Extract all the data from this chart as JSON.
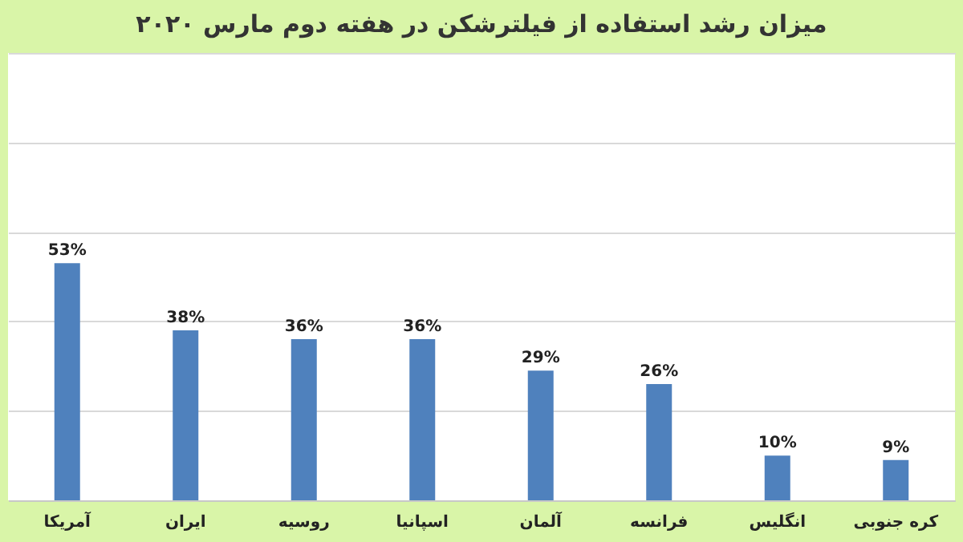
{
  "chart_data": {
    "type": "bar",
    "title": "میزان رشد استفاده از فیلترشکن در هفته دوم مارس ۲۰۲۰",
    "categories": [
      "آمریکا",
      "ایران",
      "روسیه",
      "اسپانیا",
      "آلمان",
      "فرانسه",
      "انگلیس",
      "کره جنوبی"
    ],
    "values": [
      53,
      38,
      36,
      36,
      29,
      26,
      10,
      9
    ],
    "value_labels": [
      "53%",
      "38%",
      "36%",
      "36%",
      "29%",
      "26%",
      "10%",
      "9%"
    ],
    "color": "#4f81bd",
    "ylim": [
      0,
      100
    ],
    "yticks": [
      0,
      20,
      40,
      60,
      80,
      100
    ],
    "grid": "y",
    "tick_labels": "x"
  }
}
